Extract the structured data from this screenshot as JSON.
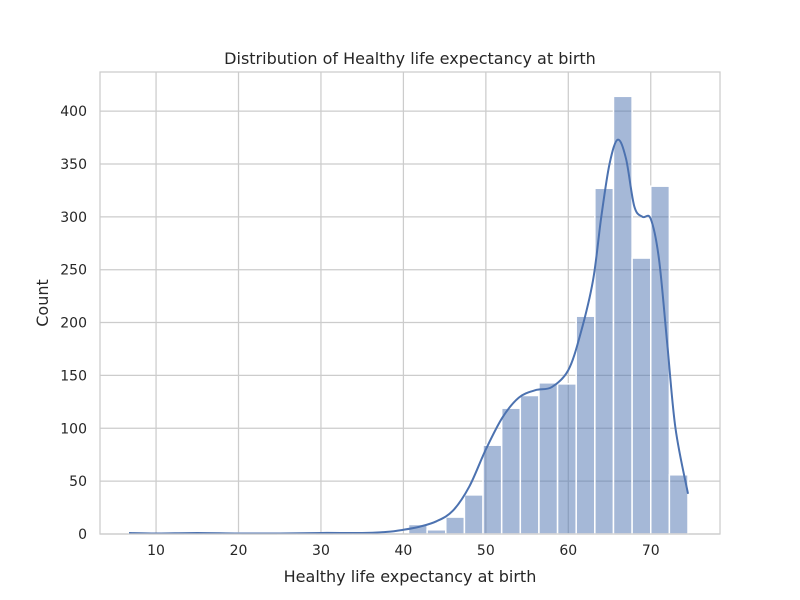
{
  "chart_data": {
    "type": "bar",
    "subtype": "histogram",
    "title": "Distribution of Healthy life expectancy at birth",
    "xlabel": "Healthy life expectancy at birth",
    "ylabel": "Count",
    "xlim": [
      3.2,
      78.4
    ],
    "ylim": [
      0,
      437
    ],
    "xticks": [
      10,
      20,
      30,
      40,
      50,
      60,
      70
    ],
    "yticks": [
      0,
      50,
      100,
      150,
      200,
      250,
      300,
      350,
      400
    ],
    "grid": true,
    "bins": [
      {
        "x0": 6.72,
        "x1": 8.98,
        "count": 2
      },
      {
        "x0": 8.98,
        "x1": 11.24,
        "count": 0
      },
      {
        "x0": 11.24,
        "x1": 13.5,
        "count": 0
      },
      {
        "x0": 13.5,
        "x1": 15.76,
        "count": 1
      },
      {
        "x0": 15.76,
        "x1": 18.02,
        "count": 2
      },
      {
        "x0": 18.02,
        "x1": 20.28,
        "count": 1
      },
      {
        "x0": 20.28,
        "x1": 22.54,
        "count": 0
      },
      {
        "x0": 22.54,
        "x1": 24.8,
        "count": 0
      },
      {
        "x0": 24.8,
        "x1": 27.06,
        "count": 1
      },
      {
        "x0": 27.06,
        "x1": 29.32,
        "count": 1
      },
      {
        "x0": 29.32,
        "x1": 31.58,
        "count": 0
      },
      {
        "x0": 31.58,
        "x1": 33.84,
        "count": 1
      },
      {
        "x0": 33.84,
        "x1": 36.1,
        "count": 1
      },
      {
        "x0": 36.1,
        "x1": 38.36,
        "count": 0
      },
      {
        "x0": 38.36,
        "x1": 40.62,
        "count": 0
      },
      {
        "x0": 40.62,
        "x1": 42.88,
        "count": 9
      },
      {
        "x0": 42.88,
        "x1": 45.14,
        "count": 4
      },
      {
        "x0": 45.14,
        "x1": 47.4,
        "count": 16
      },
      {
        "x0": 47.4,
        "x1": 49.66,
        "count": 37
      },
      {
        "x0": 49.66,
        "x1": 51.92,
        "count": 84
      },
      {
        "x0": 51.92,
        "x1": 54.18,
        "count": 119
      },
      {
        "x0": 54.18,
        "x1": 56.44,
        "count": 131
      },
      {
        "x0": 56.44,
        "x1": 58.7,
        "count": 143
      },
      {
        "x0": 58.7,
        "x1": 60.96,
        "count": 142
      },
      {
        "x0": 60.96,
        "x1": 63.22,
        "count": 206
      },
      {
        "x0": 63.22,
        "x1": 65.48,
        "count": 327
      },
      {
        "x0": 65.48,
        "x1": 67.74,
        "count": 414
      },
      {
        "x0": 67.74,
        "x1": 70.0,
        "count": 261
      },
      {
        "x0": 70.0,
        "x1": 72.26,
        "count": 329
      },
      {
        "x0": 72.26,
        "x1": 74.52,
        "count": 56
      }
    ],
    "kde": {
      "x": [
        6.72,
        10,
        15,
        20,
        25,
        30,
        35,
        38,
        40,
        42,
        44,
        46,
        48,
        50,
        52,
        54,
        56,
        58,
        60,
        61.5,
        63,
        64,
        65,
        66,
        67,
        68,
        69,
        70,
        71,
        72,
        73,
        74.52
      ],
      "y": [
        1,
        0.5,
        1,
        0.5,
        0.5,
        1,
        1,
        2,
        4,
        7,
        12,
        22,
        45,
        80,
        110,
        129,
        136,
        139,
        155,
        190,
        240,
        300,
        350,
        373,
        355,
        310,
        300,
        298,
        260,
        180,
        100,
        38
      ]
    },
    "colors": {
      "bar_fill": "#4c72b0",
      "bar_opacity": 0.5,
      "bar_edge": "#ffffff",
      "kde_line": "#4c72b0",
      "grid": "#cccccc",
      "axes_edge": "#cccccc",
      "text": "#262626"
    }
  }
}
